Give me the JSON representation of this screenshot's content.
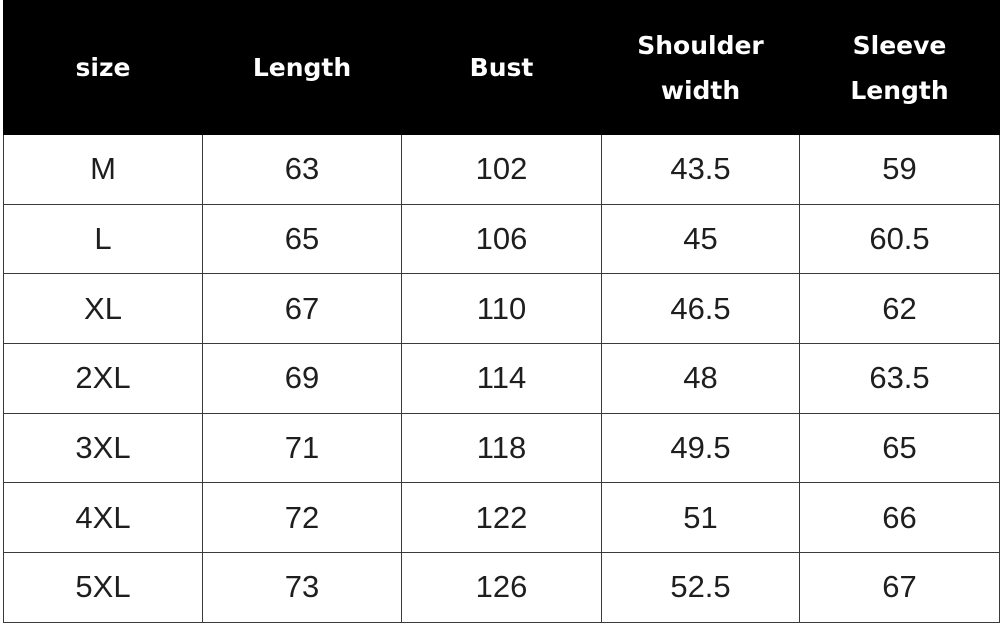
{
  "table": {
    "headers": [
      {
        "lines": [
          "size"
        ]
      },
      {
        "lines": [
          "Length"
        ]
      },
      {
        "lines": [
          "Bust"
        ]
      },
      {
        "lines": [
          "Shoulder",
          "width"
        ]
      },
      {
        "lines": [
          "Sleeve",
          "Length"
        ]
      }
    ],
    "rows": [
      [
        "M",
        "63",
        "102",
        "43.5",
        "59"
      ],
      [
        "L",
        "65",
        "106",
        "45",
        "60.5"
      ],
      [
        "XL",
        "67",
        "110",
        "46.5",
        "62"
      ],
      [
        "2XL",
        "69",
        "114",
        "48",
        "63.5"
      ],
      [
        "3XL",
        "71",
        "118",
        "49.5",
        "65"
      ],
      [
        "4XL",
        "72",
        "122",
        "51",
        "66"
      ],
      [
        "5XL",
        "73",
        "126",
        "52.5",
        "67"
      ]
    ]
  },
  "colors": {
    "header_background": "#000000",
    "header_text": "#ffffff",
    "cell_text": "#1e1e1e",
    "grid_line": "#3a3a3a"
  }
}
